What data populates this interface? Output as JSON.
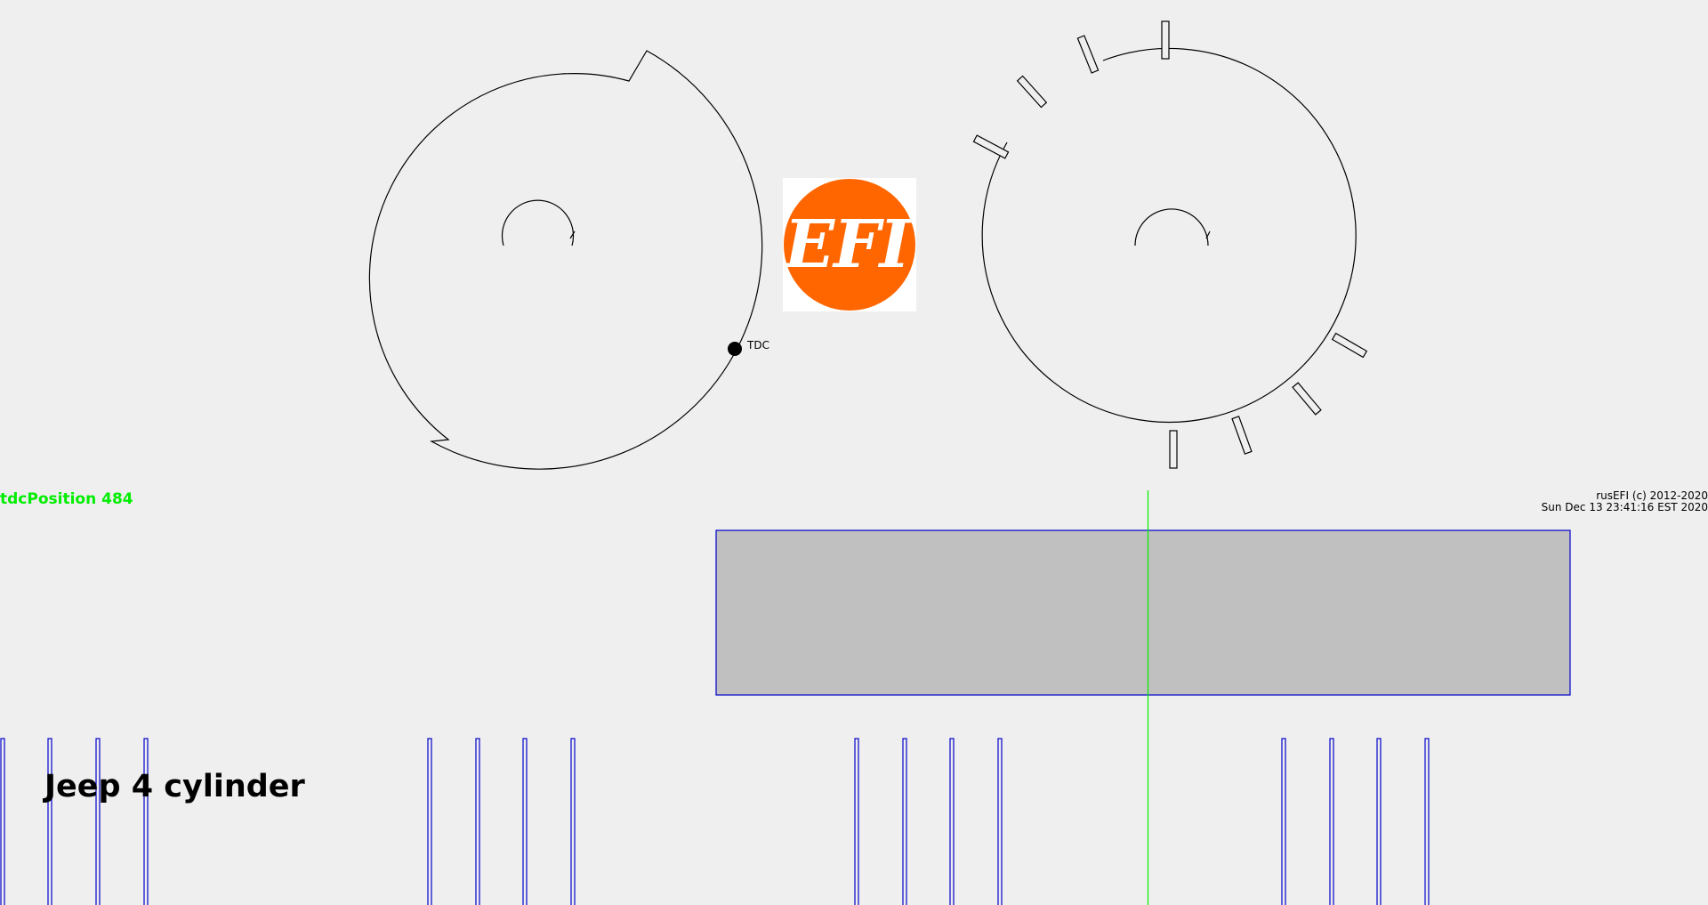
{
  "status": {
    "tdc_position": "tdcPosition 484"
  },
  "copyright": {
    "line1": "rusEFI (c) 2012-2020",
    "line2": "Sun Dec 13 23:41:16 EST 2020"
  },
  "trigger": {
    "name": "Jeep 4 cylinder"
  },
  "logo": {
    "text": "EFI",
    "color": "#ff6600"
  },
  "crank_wheel": {
    "tdc_label": "TDC"
  },
  "colors": {
    "tdc_marker": "#00ee00",
    "signal": "#0000cc",
    "window_fill": "#c0c0c0",
    "outline": "#000000"
  }
}
